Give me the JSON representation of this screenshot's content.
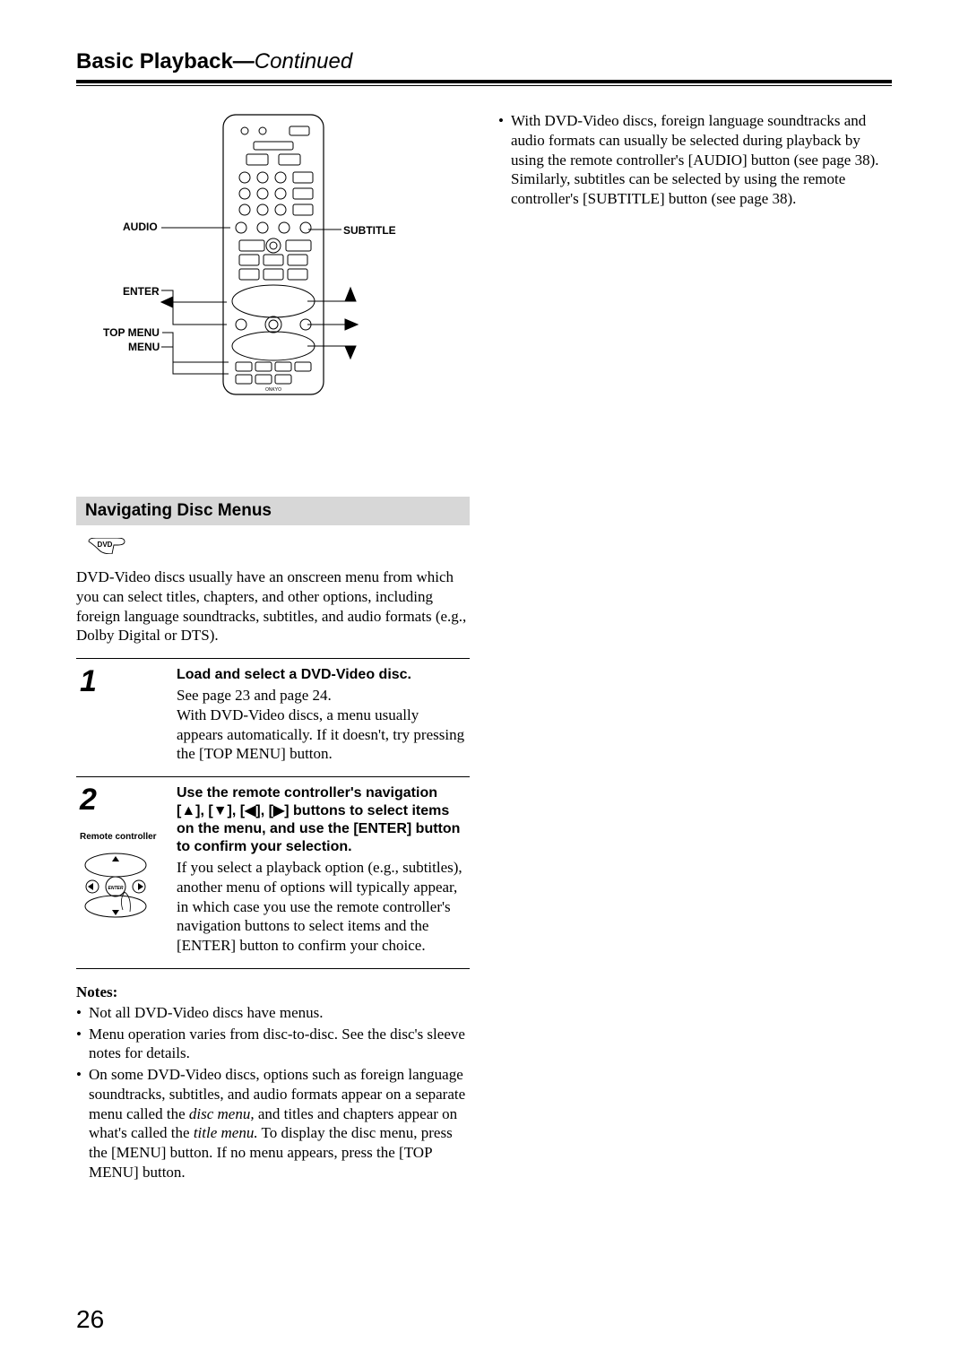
{
  "header": {
    "title_main": "Basic Playback",
    "title_dash": "—",
    "title_cont": "Continued"
  },
  "remote_labels": {
    "audio": "AUDIO",
    "subtitle": "SUBTITLE",
    "enter": "ENTER",
    "topmenu": "TOP MENU",
    "menu": "MENU"
  },
  "section": {
    "heading": "Navigating Disc Menus",
    "dvd_badge": "DVD",
    "intro": "DVD-Video discs usually have an onscreen menu from which you can select titles, chapters, and other options, including foreign language soundtracks, subtitles, and audio formats (e.g., Dolby Digital or DTS)."
  },
  "steps": {
    "s1": {
      "num": "1",
      "title": "Load and select a DVD-Video disc.",
      "body": "See page 23 and page 24.\nWith DVD-Video discs, a menu usually appears automatically. If it doesn't, try pressing the [TOP MENU] button."
    },
    "s2": {
      "num": "2",
      "sublabel": "Remote controller",
      "title": "Use the remote controller's navigation [▲], [▼], [◀], [▶] buttons to select items on the menu, and use the [ENTER] button to confirm your selection.",
      "body": "If you select a playback option (e.g., subtitles), another menu of options will typically appear, in which case you use the remote controller's navigation buttons to select items and the [ENTER] button to confirm your choice."
    }
  },
  "notes": {
    "heading": "Notes:",
    "n1": "Not all DVD-Video discs have menus.",
    "n2": "Menu operation varies from disc-to-disc. See the disc's sleeve notes for details.",
    "n3a": "On some DVD-Video discs, options such as foreign language soundtracks, subtitles, and audio formats appear on a separate menu called the ",
    "n3b": "disc menu,",
    "n3c": " and titles and chapters appear on what's called the ",
    "n3d": "title menu.",
    "n3e": " To display the disc menu, press the [MENU] button. If no menu appears, press the [TOP MENU] button."
  },
  "right_col": {
    "bullet": "With DVD-Video discs, foreign language soundtracks and audio formats can usually be selected during playback by using the remote controller's [AUDIO] button (see page 38). Similarly, subtitles can be selected by using the remote controller's [SUBTITLE] button (see page 38)."
  },
  "page_number": "26",
  "style": {
    "remote_outline": "#000000",
    "heading_bg": "#d7d7d7"
  }
}
